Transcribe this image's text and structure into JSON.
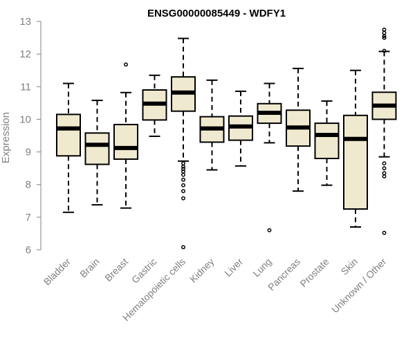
{
  "chart_data": {
    "type": "boxplot",
    "title": "ENSG00000085449 - WDFY1",
    "ylabel": "Expression",
    "ylim": [
      6,
      13
    ],
    "yticks": [
      6,
      7,
      8,
      9,
      10,
      11,
      12,
      13
    ],
    "box_fill": "#efe9d0",
    "categories": [
      "Bladder",
      "Brain",
      "Breast",
      "Gastric",
      "Hematopoietic cells",
      "Kidney",
      "Liver",
      "Lung",
      "Pancreas",
      "Prostate",
      "Skin",
      "Unknown / Other"
    ],
    "boxes": [
      {
        "whisker_low": 7.15,
        "q1": 8.88,
        "median": 9.72,
        "q3": 10.15,
        "whisker_high": 11.1,
        "outliers": []
      },
      {
        "whisker_low": 7.38,
        "q1": 8.62,
        "median": 9.22,
        "q3": 9.58,
        "whisker_high": 10.58,
        "outliers": []
      },
      {
        "whisker_low": 7.28,
        "q1": 8.78,
        "median": 9.12,
        "q3": 9.84,
        "whisker_high": 10.82,
        "outliers": [
          11.68
        ]
      },
      {
        "whisker_low": 9.48,
        "q1": 9.98,
        "median": 10.48,
        "q3": 10.9,
        "whisker_high": 11.35,
        "outliers": []
      },
      {
        "whisker_low": 8.72,
        "q1": 10.25,
        "median": 10.82,
        "q3": 11.3,
        "whisker_high": 12.48,
        "outliers": [
          8.65,
          8.55,
          8.48,
          8.4,
          8.3,
          8.15,
          7.98,
          7.8,
          7.58,
          6.08
        ]
      },
      {
        "whisker_low": 8.45,
        "q1": 9.3,
        "median": 9.72,
        "q3": 10.08,
        "whisker_high": 11.2,
        "outliers": []
      },
      {
        "whisker_low": 8.57,
        "q1": 9.36,
        "median": 9.78,
        "q3": 10.1,
        "whisker_high": 10.86,
        "outliers": []
      },
      {
        "whisker_low": 9.28,
        "q1": 9.88,
        "median": 10.2,
        "q3": 10.48,
        "whisker_high": 11.1,
        "outliers": [
          6.6
        ]
      },
      {
        "whisker_low": 7.8,
        "q1": 9.18,
        "median": 9.75,
        "q3": 10.28,
        "whisker_high": 11.56,
        "outliers": []
      },
      {
        "whisker_low": 7.98,
        "q1": 8.8,
        "median": 9.52,
        "q3": 9.88,
        "whisker_high": 10.56,
        "outliers": []
      },
      {
        "whisker_low": 6.7,
        "q1": 7.25,
        "median": 9.4,
        "q3": 10.12,
        "whisker_high": 11.5,
        "outliers": []
      },
      {
        "whisker_low": 8.85,
        "q1": 10.0,
        "median": 10.42,
        "q3": 10.83,
        "whisker_high": 12.08,
        "outliers": [
          12.75,
          12.65,
          12.55,
          12.5,
          12.1,
          8.65,
          8.5,
          8.35,
          8.25,
          6.52
        ]
      }
    ]
  }
}
